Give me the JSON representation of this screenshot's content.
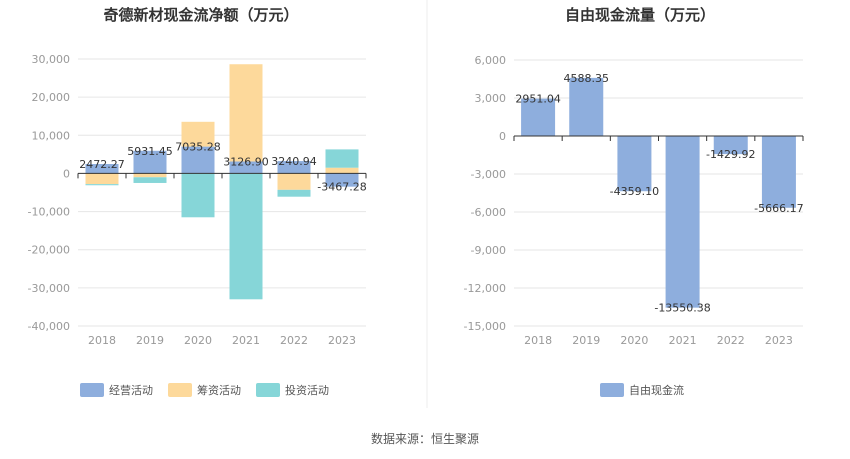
{
  "source_text": "数据来源：恒生聚源",
  "chart_data": [
    {
      "type": "bar",
      "stacked": true,
      "title": "奇德新材现金流净额（万元）",
      "categories": [
        "2018",
        "2019",
        "2020",
        "2021",
        "2022",
        "2023"
      ],
      "y_ticks": [
        "30,000",
        "20,000",
        "10,000",
        "0",
        "-10,000",
        "-20,000",
        "-30,000",
        "-40,000"
      ],
      "ylim": [
        -40000,
        30000
      ],
      "grid": true,
      "legend_position": "bottom",
      "series": [
        {
          "name": "经营活动",
          "color": "#8eaedd",
          "values": [
            2472.27,
            5931.45,
            7035.28,
            3126.9,
            3240.94,
            -3467.28
          ]
        },
        {
          "name": "筹资活动",
          "color": "#fdd99b",
          "values": [
            -2800,
            -1000,
            6500,
            25500,
            -4300,
            1500
          ]
        },
        {
          "name": "投资活动",
          "color": "#86d6d8",
          "values": [
            -300,
            -1500,
            -11500,
            -33000,
            -1800,
            4800
          ]
        }
      ],
      "data_labels": [
        "2472.27",
        "5931.45",
        "7035.28",
        "3126.90",
        "3240.94",
        "-3467.28"
      ]
    },
    {
      "type": "bar",
      "title": "自由现金流量（万元）",
      "categories": [
        "2018",
        "2019",
        "2020",
        "2021",
        "2022",
        "2023"
      ],
      "y_ticks": [
        "6,000",
        "3,000",
        "0",
        "-3,000",
        "-6,000",
        "-9,000",
        "-12,000",
        "-15,000"
      ],
      "ylim": [
        -15000,
        6000
      ],
      "grid": true,
      "legend_position": "bottom",
      "series": [
        {
          "name": "自由现金流",
          "color": "#8eaedd",
          "values": [
            2951.04,
            4588.35,
            -4359.1,
            -13550.38,
            -1429.92,
            -5666.17
          ]
        }
      ],
      "data_labels": [
        "2951.04",
        "4588.35",
        "-4359.10",
        "-13550.38",
        "-1429.92",
        "-5666.17"
      ]
    }
  ]
}
